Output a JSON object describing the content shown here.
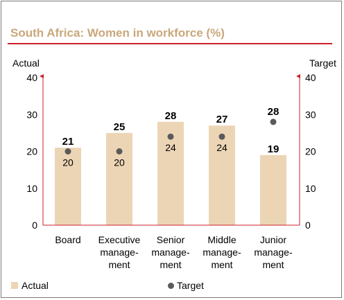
{
  "title": "South Africa: Women in workforce (%)",
  "colors": {
    "actual_bar": "#ecd5b5",
    "target_dot": "#5a5a5a",
    "axis": "#cc1f2a",
    "title": "#c9a77a"
  },
  "chart_data": {
    "type": "bar",
    "title": "South Africa: Women in workforce (%)",
    "ylabel_left": "Actual",
    "ylabel_right": "Target",
    "ylim": [
      0,
      40
    ],
    "yticks": [
      0,
      10,
      20,
      30,
      40
    ],
    "categories": [
      [
        "Board"
      ],
      [
        "Executive",
        "manage-",
        "ment"
      ],
      [
        "Senior",
        "manage-",
        "ment"
      ],
      [
        "Middle",
        "manage-",
        "ment"
      ],
      [
        "Junior",
        "manage-",
        "ment"
      ]
    ],
    "series": [
      {
        "name": "Actual",
        "type": "bar",
        "values": [
          21,
          25,
          28,
          27,
          19
        ]
      },
      {
        "name": "Target",
        "type": "scatter",
        "values": [
          20,
          20,
          24,
          24,
          28
        ]
      }
    ],
    "legend": [
      "Actual",
      "Target"
    ],
    "grid": false
  }
}
